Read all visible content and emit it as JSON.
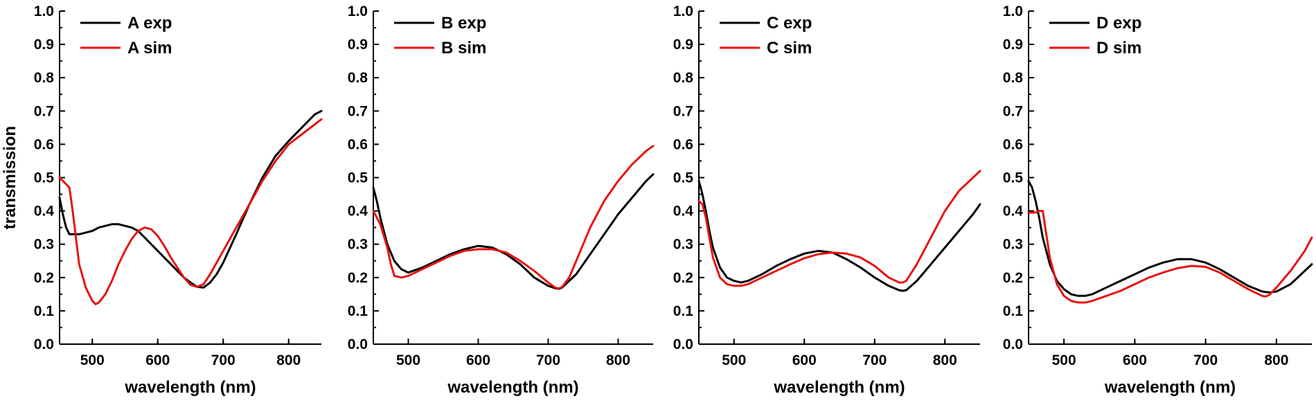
{
  "chart_data": [
    {
      "type": "line",
      "xlabel": "wavelength (nm)",
      "ylabel": "transmission",
      "xlim": [
        450,
        850
      ],
      "ylim": [
        0.0,
        1.0
      ],
      "x_ticks": [
        500,
        600,
        700,
        800
      ],
      "y_ticks": [
        "0.0",
        "0.1",
        "0.2",
        "0.3",
        "0.4",
        "0.5",
        "0.6",
        "0.7",
        "0.8",
        "0.9",
        "1.0"
      ],
      "grid": false,
      "legend_position": "top-left",
      "series": [
        {
          "name": "A exp",
          "color": "#000000",
          "x": [
            450,
            455,
            460,
            465,
            470,
            480,
            490,
            500,
            510,
            520,
            530,
            540,
            550,
            560,
            570,
            580,
            590,
            600,
            610,
            620,
            630,
            640,
            650,
            660,
            670,
            680,
            690,
            700,
            720,
            740,
            760,
            780,
            800,
            820,
            840,
            850
          ],
          "y": [
            0.44,
            0.39,
            0.35,
            0.33,
            0.33,
            0.33,
            0.335,
            0.34,
            0.35,
            0.355,
            0.36,
            0.36,
            0.355,
            0.35,
            0.34,
            0.32,
            0.3,
            0.28,
            0.26,
            0.24,
            0.22,
            0.2,
            0.185,
            0.172,
            0.17,
            0.185,
            0.21,
            0.245,
            0.33,
            0.42,
            0.5,
            0.565,
            0.61,
            0.65,
            0.69,
            0.7
          ]
        },
        {
          "name": "A sim",
          "color": "#e8120f",
          "x": [
            450,
            460,
            465,
            470,
            475,
            480,
            490,
            500,
            505,
            510,
            520,
            530,
            540,
            550,
            560,
            570,
            580,
            590,
            600,
            610,
            620,
            630,
            640,
            650,
            660,
            670,
            680,
            700,
            720,
            740,
            760,
            780,
            800,
            820,
            840,
            850
          ],
          "y": [
            0.5,
            0.48,
            0.47,
            0.4,
            0.32,
            0.24,
            0.17,
            0.13,
            0.12,
            0.125,
            0.15,
            0.19,
            0.24,
            0.28,
            0.315,
            0.34,
            0.35,
            0.345,
            0.325,
            0.295,
            0.26,
            0.23,
            0.2,
            0.178,
            0.172,
            0.18,
            0.21,
            0.28,
            0.35,
            0.42,
            0.49,
            0.55,
            0.6,
            0.63,
            0.66,
            0.675
          ]
        }
      ],
      "legend": [
        "A exp",
        "A sim"
      ]
    },
    {
      "type": "line",
      "xlabel": "wavelength (nm)",
      "ylabel": "",
      "xlim": [
        450,
        850
      ],
      "ylim": [
        0.0,
        1.0
      ],
      "x_ticks": [
        500,
        600,
        700,
        800
      ],
      "y_ticks": [
        "0.0",
        "0.1",
        "0.2",
        "0.3",
        "0.4",
        "0.5",
        "0.6",
        "0.7",
        "0.8",
        "0.9",
        "1.0"
      ],
      "grid": false,
      "legend_position": "top-left",
      "series": [
        {
          "name": "B exp",
          "color": "#000000",
          "x": [
            450,
            455,
            460,
            465,
            470,
            480,
            490,
            500,
            520,
            540,
            560,
            580,
            600,
            620,
            640,
            660,
            680,
            700,
            710,
            715,
            720,
            740,
            760,
            780,
            800,
            820,
            840,
            850
          ],
          "y": [
            0.47,
            0.43,
            0.38,
            0.34,
            0.3,
            0.25,
            0.225,
            0.215,
            0.23,
            0.25,
            0.27,
            0.285,
            0.295,
            0.29,
            0.27,
            0.24,
            0.2,
            0.175,
            0.168,
            0.166,
            0.17,
            0.21,
            0.27,
            0.33,
            0.39,
            0.44,
            0.49,
            0.51
          ]
        },
        {
          "name": "B sim",
          "color": "#e8120f",
          "x": [
            450,
            460,
            470,
            475,
            480,
            490,
            500,
            520,
            540,
            560,
            580,
            600,
            620,
            640,
            660,
            680,
            700,
            710,
            715,
            720,
            730,
            740,
            760,
            780,
            800,
            820,
            840,
            850
          ],
          "y": [
            0.4,
            0.36,
            0.29,
            0.24,
            0.205,
            0.2,
            0.205,
            0.225,
            0.245,
            0.265,
            0.28,
            0.285,
            0.285,
            0.275,
            0.25,
            0.22,
            0.185,
            0.17,
            0.167,
            0.172,
            0.2,
            0.25,
            0.35,
            0.43,
            0.49,
            0.54,
            0.58,
            0.595
          ]
        }
      ],
      "legend": [
        "B exp",
        "B sim"
      ]
    },
    {
      "type": "line",
      "xlabel": "wavelength (nm)",
      "ylabel": "",
      "xlim": [
        450,
        850
      ],
      "ylim": [
        0.0,
        1.0
      ],
      "x_ticks": [
        500,
        600,
        700,
        800
      ],
      "y_ticks": [
        "0.0",
        "0.1",
        "0.2",
        "0.3",
        "0.4",
        "0.5",
        "0.6",
        "0.7",
        "0.8",
        "0.9",
        "1.0"
      ],
      "grid": false,
      "legend_position": "top-left",
      "series": [
        {
          "name": "C exp",
          "color": "#000000",
          "x": [
            450,
            455,
            460,
            465,
            470,
            480,
            490,
            500,
            510,
            520,
            540,
            560,
            580,
            600,
            620,
            640,
            660,
            680,
            700,
            720,
            735,
            740,
            745,
            760,
            780,
            800,
            820,
            840,
            850
          ],
          "y": [
            0.49,
            0.45,
            0.4,
            0.34,
            0.29,
            0.23,
            0.2,
            0.19,
            0.185,
            0.19,
            0.21,
            0.235,
            0.255,
            0.272,
            0.28,
            0.275,
            0.255,
            0.23,
            0.2,
            0.175,
            0.162,
            0.16,
            0.162,
            0.19,
            0.24,
            0.29,
            0.34,
            0.39,
            0.42
          ]
        },
        {
          "name": "C sim",
          "color": "#e8120f",
          "x": [
            450,
            455,
            460,
            465,
            470,
            480,
            490,
            500,
            510,
            520,
            540,
            560,
            580,
            600,
            620,
            640,
            660,
            680,
            700,
            720,
            735,
            740,
            745,
            760,
            780,
            800,
            820,
            840,
            850
          ],
          "y": [
            0.43,
            0.42,
            0.38,
            0.32,
            0.26,
            0.2,
            0.18,
            0.175,
            0.175,
            0.18,
            0.2,
            0.22,
            0.24,
            0.258,
            0.27,
            0.275,
            0.272,
            0.26,
            0.235,
            0.2,
            0.185,
            0.185,
            0.19,
            0.24,
            0.32,
            0.4,
            0.46,
            0.5,
            0.52
          ]
        }
      ],
      "legend": [
        "C exp",
        "C sim"
      ]
    },
    {
      "type": "line",
      "xlabel": "wavelength (nm)",
      "ylabel": "",
      "xlim": [
        450,
        850
      ],
      "ylim": [
        0.0,
        1.0
      ],
      "x_ticks": [
        500,
        600,
        700,
        800
      ],
      "y_ticks": [
        "0.0",
        "0.1",
        "0.2",
        "0.3",
        "0.4",
        "0.5",
        "0.6",
        "0.7",
        "0.8",
        "0.9",
        "1.0"
      ],
      "grid": false,
      "legend_position": "top-left",
      "series": [
        {
          "name": "D exp",
          "color": "#000000",
          "x": [
            450,
            455,
            460,
            465,
            470,
            480,
            490,
            500,
            510,
            520,
            530,
            540,
            560,
            580,
            600,
            620,
            640,
            660,
            680,
            700,
            720,
            740,
            760,
            780,
            790,
            800,
            820,
            840,
            850
          ],
          "y": [
            0.49,
            0.47,
            0.43,
            0.38,
            0.32,
            0.24,
            0.19,
            0.165,
            0.15,
            0.145,
            0.145,
            0.15,
            0.17,
            0.19,
            0.21,
            0.23,
            0.245,
            0.255,
            0.255,
            0.245,
            0.225,
            0.2,
            0.175,
            0.158,
            0.155,
            0.158,
            0.18,
            0.22,
            0.24
          ]
        },
        {
          "name": "D sim",
          "color": "#e8120f",
          "x": [
            450,
            460,
            465,
            470,
            475,
            480,
            490,
            500,
            510,
            520,
            530,
            540,
            560,
            580,
            600,
            620,
            640,
            660,
            680,
            700,
            720,
            740,
            760,
            780,
            785,
            790,
            800,
            820,
            840,
            850
          ],
          "y": [
            0.395,
            0.395,
            0.4,
            0.4,
            0.33,
            0.26,
            0.18,
            0.145,
            0.13,
            0.125,
            0.125,
            0.13,
            0.145,
            0.16,
            0.18,
            0.2,
            0.215,
            0.228,
            0.235,
            0.232,
            0.215,
            0.19,
            0.165,
            0.145,
            0.143,
            0.148,
            0.17,
            0.22,
            0.28,
            0.32
          ]
        }
      ],
      "legend": [
        "D exp",
        "D sim"
      ]
    }
  ]
}
